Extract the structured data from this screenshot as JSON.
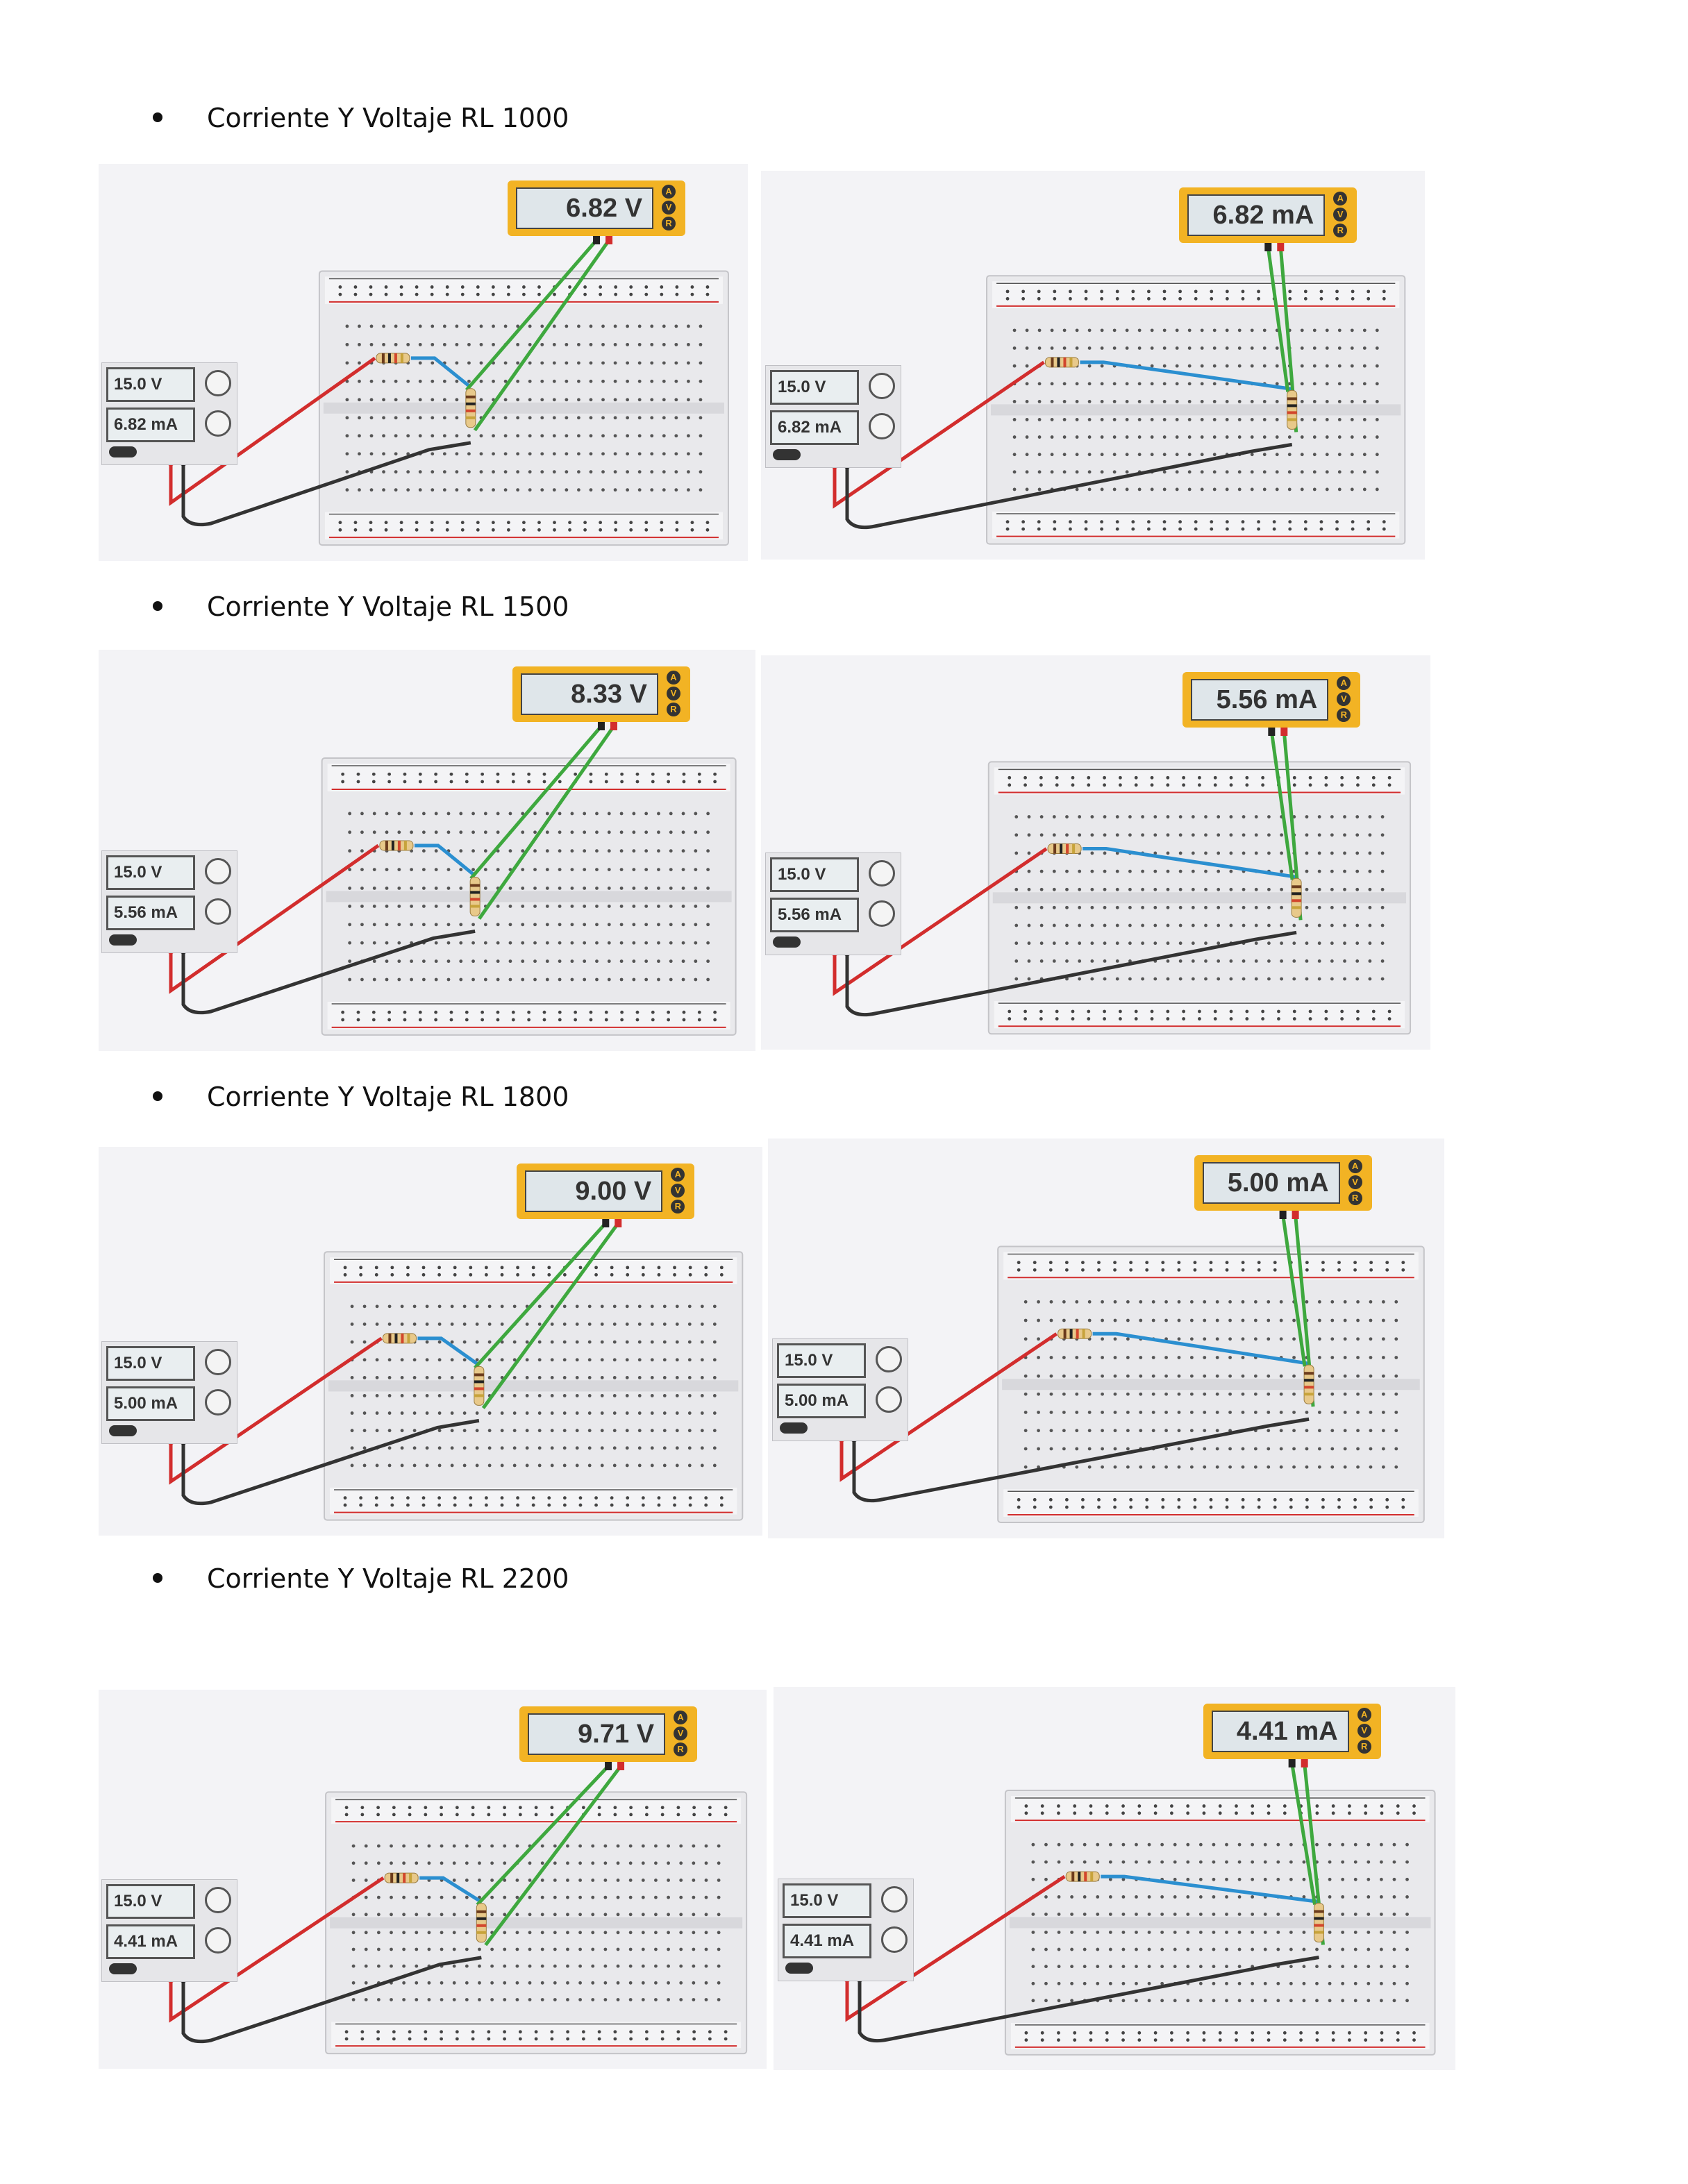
{
  "sections": [
    {
      "heading": "Corriente Y Voltaje RL 1000",
      "left": {
        "meter": "6.82 V",
        "psu_voltage": "15.0 V",
        "psu_current": "6.82 mA"
      },
      "right": {
        "meter": "6.82 mA",
        "psu_voltage": "15.0 V",
        "psu_current": "6.82 mA"
      }
    },
    {
      "heading": "Corriente Y Voltaje RL 1500",
      "left": {
        "meter": "8.33 V",
        "psu_voltage": "15.0 V",
        "psu_current": "5.56 mA"
      },
      "right": {
        "meter": "5.56 mA",
        "psu_voltage": "15.0 V",
        "psu_current": "5.56 mA"
      }
    },
    {
      "heading": "Corriente Y Voltaje RL 1800",
      "left": {
        "meter": "9.00 V",
        "psu_voltage": "15.0 V",
        "psu_current": "5.00 mA"
      },
      "right": {
        "meter": "5.00 mA",
        "psu_voltage": "15.0 V",
        "psu_current": "5.00 mA"
      }
    },
    {
      "heading": "Corriente Y Voltaje RL 2200",
      "left": {
        "meter": "9.71 V",
        "psu_voltage": "15.0 V",
        "psu_current": "4.41 mA"
      },
      "right": {
        "meter": "4.41 mA",
        "psu_voltage": "15.0 V",
        "psu_current": "4.41 mA"
      }
    }
  ],
  "meter_mode_labels": [
    "A",
    "V",
    "R"
  ],
  "colors": {
    "meter": "#f2b324",
    "positive_wire": "#d22d2d",
    "negative_wire": "#333333",
    "probe_wire": "#3ea83e",
    "jumper_wire": "#2b8fd0",
    "rail_red": "#d22d2d"
  }
}
